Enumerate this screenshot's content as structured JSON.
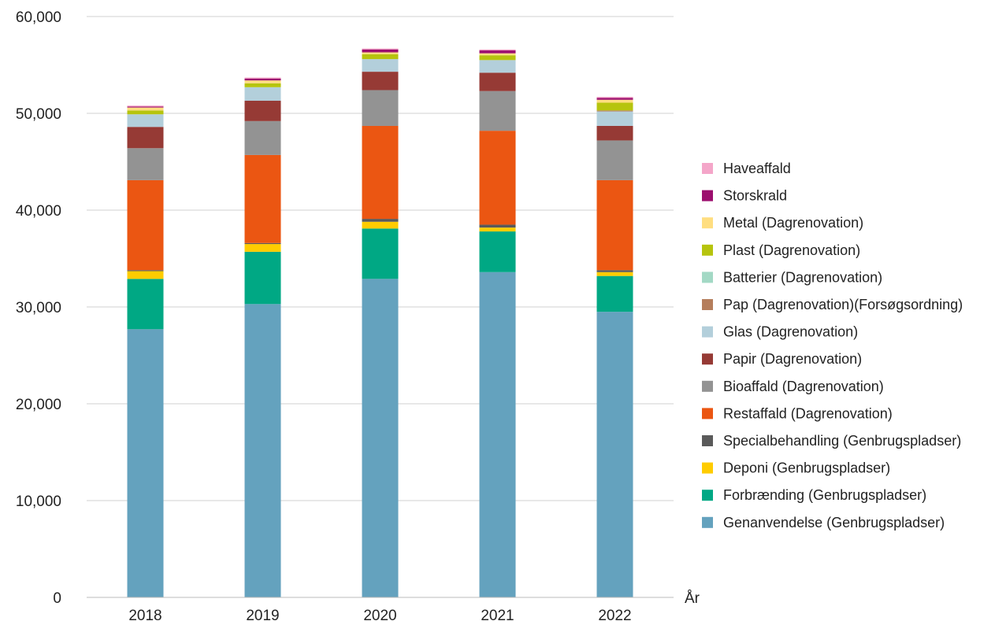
{
  "chart_data": {
    "type": "bar",
    "stacked": true,
    "title": "",
    "ylabel": "",
    "xlabel": "År",
    "ylim": [
      0,
      60000
    ],
    "yticks": [
      0,
      10000,
      20000,
      30000,
      40000,
      50000,
      60000
    ],
    "ytick_labels": [
      "0",
      "10,000",
      "20,000",
      "30,000",
      "40,000",
      "50,000",
      "60,000"
    ],
    "grid": true,
    "legend_position": "right",
    "categories": [
      "2018",
      "2019",
      "2020",
      "2021",
      "2022"
    ],
    "series": [
      {
        "name": "Genanvendelse (Genbrugspladser)",
        "color": "#64a2be",
        "values": [
          27700,
          30300,
          32900,
          33600,
          29500
        ]
      },
      {
        "name": "Forbrænding (Genbrugspladser)",
        "color": "#00a884",
        "values": [
          5200,
          5400,
          5200,
          4200,
          3700
        ]
      },
      {
        "name": "Deponi (Genbrugspladser)",
        "color": "#ffcc00",
        "values": [
          800,
          800,
          700,
          400,
          400
        ]
      },
      {
        "name": "Specialbehandling (Genbrugspladser)",
        "color": "#5a5a5a",
        "values": [
          100,
          100,
          300,
          300,
          200
        ]
      },
      {
        "name": "Restaffald (Dagrenovation)",
        "color": "#eb5612",
        "values": [
          9300,
          9100,
          9600,
          9700,
          9300
        ]
      },
      {
        "name": "Bioaffald (Dagrenovation)",
        "color": "#939393",
        "values": [
          3300,
          3500,
          3700,
          4100,
          4100
        ]
      },
      {
        "name": "Papir (Dagrenovation)",
        "color": "#963a35",
        "values": [
          2200,
          2100,
          1900,
          1900,
          1500
        ]
      },
      {
        "name": "Glas (Dagrenovation)",
        "color": "#b3cfdb",
        "values": [
          1300,
          1400,
          1300,
          1300,
          1500
        ]
      },
      {
        "name": "Pap (Dagrenovation)(Forsøgsordning)",
        "color": "#b57e5c",
        "values": [
          0,
          0,
          0,
          0,
          100
        ]
      },
      {
        "name": "Batterier (Dagrenovation)",
        "color": "#a3d9c5",
        "values": [
          0,
          0,
          0,
          0,
          0
        ]
      },
      {
        "name": "Plast (Dagrenovation)",
        "color": "#b6c40e",
        "values": [
          400,
          400,
          500,
          500,
          800
        ]
      },
      {
        "name": "Metal (Dagrenovation)",
        "color": "#ffde80",
        "values": [
          300,
          300,
          200,
          200,
          300
        ]
      },
      {
        "name": "Storskrald",
        "color": "#9c0f6e",
        "values": [
          100,
          200,
          300,
          300,
          200
        ]
      },
      {
        "name": "Haveaffald",
        "color": "#f4a6c9",
        "values": [
          100,
          100,
          100,
          100,
          100
        ]
      }
    ]
  }
}
